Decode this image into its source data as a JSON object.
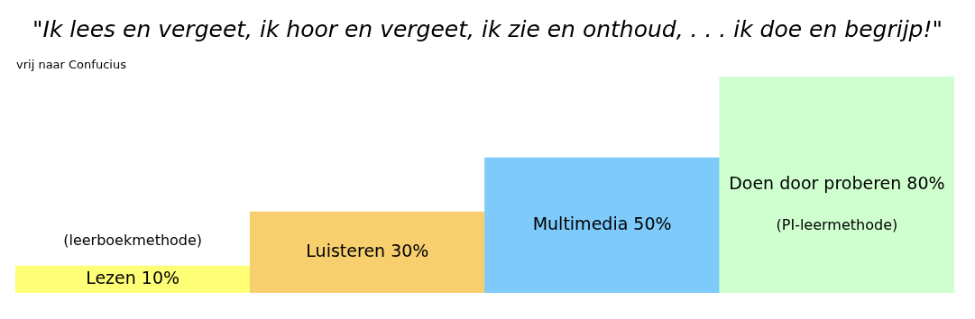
{
  "chart_data": {
    "type": "bar",
    "title": "\"Ik lees en vergeet, ik hoor en vergeet, ik zie en onthoud, . . . ik doe en begrijp!\"",
    "subtitle": "vrij naar Confucius",
    "categories": [
      "Lezen",
      "Luisteren",
      "Multimedia",
      "Doen door proberen"
    ],
    "values": [
      10,
      30,
      50,
      80
    ],
    "value_labels": [
      "10%",
      "30%",
      "50%",
      "80%"
    ],
    "colors": [
      "#ffff77",
      "#f7cf6f",
      "#7ecafa",
      "#cfffcf"
    ],
    "tick_labels": false,
    "annotations": [
      "(leerboekmethode)",
      "(PI-leermethode)"
    ]
  }
}
